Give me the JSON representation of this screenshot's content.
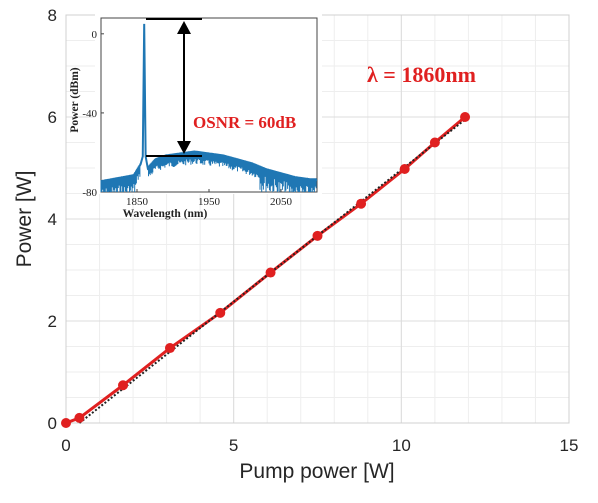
{
  "chart_data": [
    {
      "type": "line",
      "title": "",
      "xlabel": "Pump power [W]",
      "ylabel": "Power [W]",
      "xlim": [
        0,
        15
      ],
      "ylim": [
        0,
        8
      ],
      "xticks": [
        "0",
        "5",
        "10",
        "15"
      ],
      "yticks": [
        "0",
        "2",
        "4",
        "6",
        "8"
      ],
      "grid": true,
      "series": [
        {
          "color": "#e02020",
          "x": [
            0.0,
            0.4,
            1.7,
            3.1,
            4.6,
            6.1,
            7.5,
            8.8,
            10.1,
            11.0,
            11.9
          ],
          "y": [
            0.0,
            0.1,
            0.74,
            1.47,
            2.16,
            2.95,
            3.67,
            4.3,
            4.98,
            5.5,
            6.0
          ]
        },
        {
          "color": "#222222",
          "style": "dotted",
          "x": [
            0.4,
            12.0
          ],
          "y": [
            0.0,
            6.0
          ]
        }
      ],
      "annotation": "λ = 1860nm",
      "annotation_color": "#e02020"
    },
    {
      "type": "line",
      "title": "",
      "xlabel": "Wavelength (nm)",
      "ylabel": "Power (dBm)",
      "xlim": [
        1800,
        2100
      ],
      "ylim": [
        -80,
        8
      ],
      "xticks": [
        "1850",
        "1950",
        "2050"
      ],
      "yticks": [
        "0",
        "-40",
        "-80"
      ],
      "series": [
        {
          "color": "#1f77b4",
          "x": [
            1800,
            1815,
            1830,
            1845,
            1855,
            1858,
            1860,
            1862,
            1865,
            1875,
            1890,
            1910,
            1930,
            1950,
            1970,
            1990,
            2010,
            2030,
            2050,
            2070,
            2090,
            2100
          ],
          "y": [
            -75,
            -74,
            -73,
            -72,
            -66,
            -62,
            5,
            -62,
            -68,
            -64,
            -62,
            -61,
            -60,
            -61,
            -62,
            -64,
            -66,
            -69,
            -71,
            -73,
            -74,
            -74
          ]
        }
      ],
      "osnr_label": "OSNR = 60dB",
      "osnr_color": "#e02020"
    }
  ]
}
